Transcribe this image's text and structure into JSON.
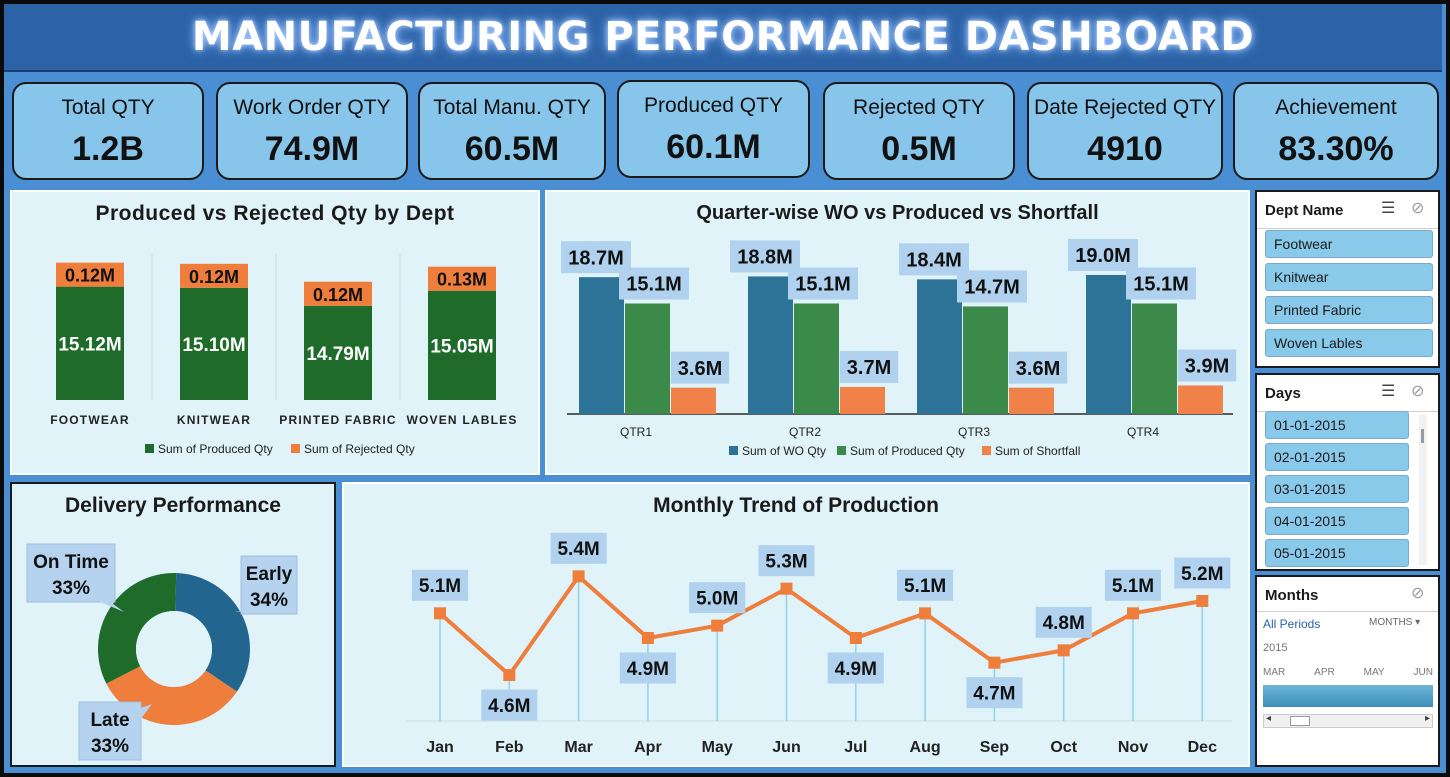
{
  "title": "MANUFACTURING PERFORMANCE DASHBOARD",
  "kpis": [
    {
      "label": "Total QTY",
      "value": "1.2B"
    },
    {
      "label": "Work Order QTY",
      "value": "74.9M"
    },
    {
      "label": "Total Manu. QTY",
      "value": "60.5M"
    },
    {
      "label": "Produced QTY",
      "value": "60.1M"
    },
    {
      "label": "Rejected QTY",
      "value": "0.5M"
    },
    {
      "label": "Date Rejected QTY",
      "value": "4910"
    },
    {
      "label": "Achievement",
      "value": "83.30%"
    }
  ],
  "colors": {
    "produced": "#1e6b2a",
    "rejected": "#ef7d3c",
    "wo": "#2d7397",
    "produced_q": "#3c8a49",
    "shortfall": "#ef8149",
    "line": "#ef7d3c",
    "label_box": "#b0d2ef"
  },
  "chart_data": [
    {
      "type": "bar",
      "title": "Produced vs Rejected Qty by Dept",
      "stacked": true,
      "categories": [
        "FOOTWEAR",
        "KNITWEAR",
        "PRINTED FABRIC",
        "WOVEN LABLES"
      ],
      "series": [
        {
          "name": "Sum of Produced Qty",
          "values": [
            15.12,
            15.1,
            14.79,
            15.05
          ],
          "labels": [
            "15.12M",
            "15.10M",
            "14.79M",
            "15.05M"
          ]
        },
        {
          "name": "Sum of Rejected Qty",
          "values": [
            0.12,
            0.12,
            0.12,
            0.13
          ],
          "labels": [
            "0.12M",
            "0.12M",
            "0.12M",
            "0.13M"
          ]
        }
      ],
      "legend": "bottom"
    },
    {
      "type": "bar",
      "title": "Quarter-wise WO vs Produced vs Shortfall",
      "categories": [
        "QTR1",
        "QTR2",
        "QTR3",
        "QTR4"
      ],
      "series": [
        {
          "name": "Sum of WO Qty",
          "values": [
            18.7,
            18.8,
            18.4,
            19.0
          ],
          "labels": [
            "18.7M",
            "18.8M",
            "18.4M",
            "19.0M"
          ]
        },
        {
          "name": "Sum of Produced Qty",
          "values": [
            15.1,
            15.1,
            14.7,
            15.1
          ],
          "labels": [
            "15.1M",
            "15.1M",
            "14.7M",
            "15.1M"
          ]
        },
        {
          "name": "Sum of Shortfall",
          "values": [
            3.6,
            3.7,
            3.6,
            3.9
          ],
          "labels": [
            "3.6M",
            "3.7M",
            "3.6M",
            "3.9M"
          ]
        }
      ],
      "legend": "bottom"
    },
    {
      "type": "pie",
      "donut": true,
      "title": "Delivery Performance",
      "slices": [
        {
          "name": "Early",
          "value": 34,
          "label": "34%",
          "color": "#22668f"
        },
        {
          "name": "Late",
          "value": 33,
          "label": "33%",
          "color": "#ef7d3c"
        },
        {
          "name": "On Time",
          "value": 33,
          "label": "33%",
          "color": "#1e6b2a"
        }
      ]
    },
    {
      "type": "line",
      "title": "Monthly Trend of Production",
      "categories": [
        "Jan",
        "Feb",
        "Mar",
        "Apr",
        "May",
        "Jun",
        "Jul",
        "Aug",
        "Sep",
        "Oct",
        "Nov",
        "Dec"
      ],
      "values": [
        5.1,
        4.6,
        5.4,
        4.9,
        5.0,
        5.3,
        4.9,
        5.1,
        4.7,
        4.8,
        5.1,
        5.2
      ],
      "labels": [
        "5.1M",
        "4.6M",
        "5.4M",
        "4.9M",
        "5.0M",
        "5.3M",
        "4.9M",
        "5.1M",
        "4.7M",
        "4.8M",
        "5.1M",
        "5.2M"
      ],
      "ylim": [
        4.3,
        5.5
      ]
    }
  ],
  "slicers": {
    "dept": {
      "header": "Dept Name",
      "items": [
        "Footwear",
        "Knitwear",
        "Printed Fabric",
        "Woven Lables"
      ]
    },
    "days": {
      "header": "Days",
      "items": [
        "01-01-2015",
        "02-01-2015",
        "03-01-2015",
        "04-01-2015",
        "05-01-2015"
      ]
    },
    "months": {
      "header": "Months",
      "all_periods": "All Periods",
      "level": "MONTHS",
      "year": "2015",
      "months": [
        "MAR",
        "APR",
        "MAY",
        "JUN"
      ]
    }
  }
}
